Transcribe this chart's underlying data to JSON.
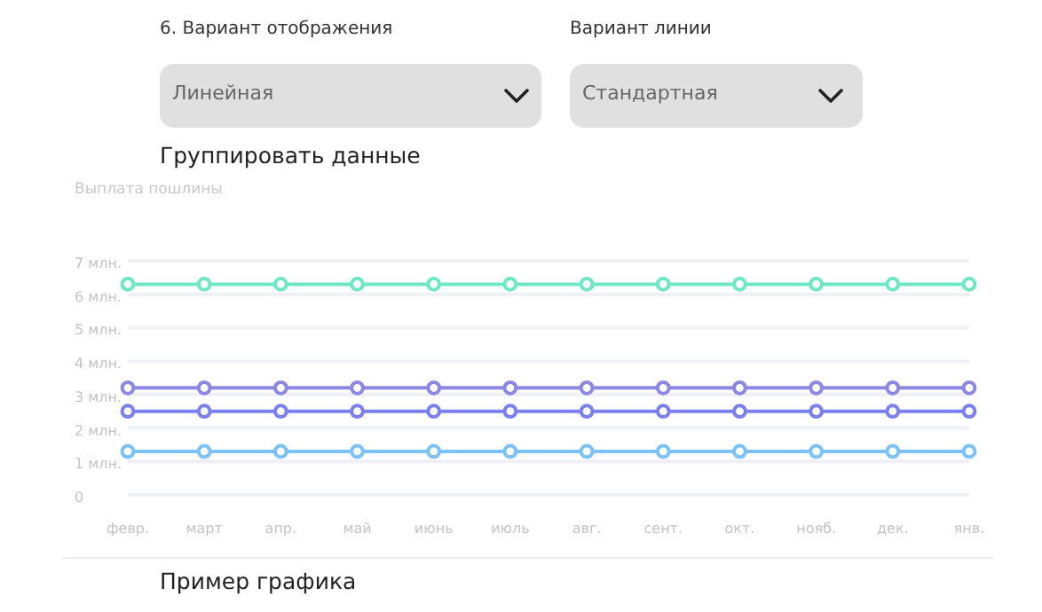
{
  "chart_data": {
    "type": "line",
    "title": "Выплата пошлины",
    "annotations": [
      "6. Вариант отображения",
      "Вариант линии",
      "Линейная",
      "Стандартная",
      "Группировать данные",
      "Пример графика"
    ],
    "categories": [
      "февр.",
      "март",
      "апр.",
      "май",
      "июнь",
      "июль",
      "авг.",
      "сент.",
      "окт.",
      "нояб.",
      "дек.",
      "янв."
    ],
    "series": [
      {
        "color": "#6ee8c4",
        "values": [
          6.3,
          6.3,
          6.3,
          6.3,
          6.3,
          6.3,
          6.3,
          6.3,
          6.3,
          6.3,
          6.3,
          6.3
        ]
      },
      {
        "color": "#8c87e2",
        "values": [
          3.2,
          3.2,
          3.2,
          3.2,
          3.2,
          3.2,
          3.2,
          3.2,
          3.2,
          3.2,
          3.2,
          3.2
        ]
      },
      {
        "color": "#7a7ff2",
        "values": [
          2.5,
          2.5,
          2.5,
          2.5,
          2.5,
          2.5,
          2.5,
          2.5,
          2.5,
          2.5,
          2.5,
          2.5
        ]
      },
      {
        "color": "#7cc2fa",
        "values": [
          1.3,
          1.3,
          1.3,
          1.3,
          1.3,
          1.3,
          1.3,
          1.3,
          1.3,
          1.3,
          1.3,
          1.3
        ]
      }
    ],
    "ylim": [
      0,
      7
    ],
    "yticks": [
      0,
      {
        "value": 1,
        "label": "1 млн."
      },
      {
        "value": 2,
        "label": "2 млн."
      },
      {
        "value": 3,
        "label": "3 млн."
      },
      {
        "value": 4,
        "label": "4 млн."
      },
      {
        "value": 5,
        "label": "5 млн."
      },
      {
        "value": 6,
        "label": "6 млн."
      },
      {
        "value": 7,
        "label": "7 млн."
      }
    ],
    "grid": "y",
    "marker": "circle",
    "line_style": "solid"
  }
}
